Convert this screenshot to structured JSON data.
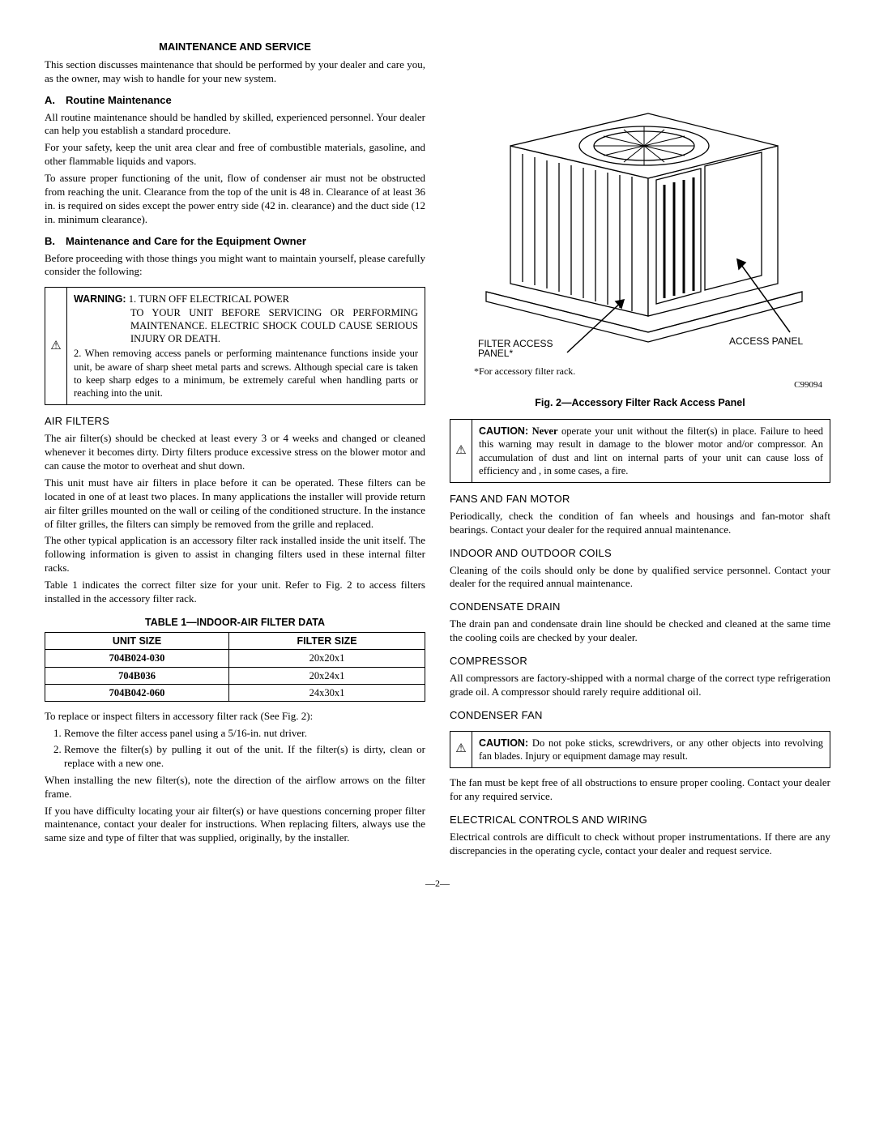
{
  "title": "MAINTENANCE AND SERVICE",
  "intro": "This section discusses maintenance that should be performed by your dealer and care you, as the owner, may wish to handle for your new system.",
  "secA": {
    "label": "A. Routine Maintenance",
    "p1": "All routine maintenance should be handled by skilled, experienced personnel. Your dealer can help you establish a standard procedure.",
    "p2": "For your safety, keep the unit area clear and free of combustible materials, gasoline, and other flammable liquids and vapors.",
    "p3": "To assure proper functioning of the unit, flow of condenser air must not be obstructed from reaching the unit. Clearance from the top of the unit is 48 in. Clearance of at least 36 in. is required on sides except the power entry side (42 in. clearance) and the duct side (12 in. minimum clearance)."
  },
  "secB": {
    "label": "B. Maintenance and Care for the Equipment Owner",
    "p1": "Before proceeding with those things you might want to maintain yourself, please carefully consider the following:"
  },
  "warning": {
    "lead": "WARNING:",
    "item1a": "1. TURN OFF ELECTRICAL POWER",
    "item1b": "TO YOUR UNIT BEFORE SERVICING OR PERFORMING MAINTENANCE. ELECTRIC SHOCK COULD CAUSE SERIOUS INJURY OR DEATH.",
    "item2": "2. When removing access panels or performing maintenance functions inside your unit, be aware of sharp sheet metal parts and screws. Although special care is taken to keep sharp edges to a minimum, be extremely careful when handling parts or reaching into the unit."
  },
  "airFilters": {
    "head": "AIR FILTERS",
    "p1": "The air filter(s) should be checked at least every 3 or 4 weeks and changed or cleaned whenever it becomes dirty. Dirty filters produce excessive stress on the blower motor and can cause the motor to overheat and shut down.",
    "p2": "This unit must have air filters in place before it can be operated. These filters can be located in one of at least two places. In many applications the installer will provide return air filter grilles mounted on the wall or ceiling of the conditioned structure. In the instance of filter grilles, the filters can simply be removed from the grille and replaced.",
    "p3": "The other typical application is an accessory filter rack installed inside the unit itself. The following information is given to assist in changing filters used in these internal filter racks.",
    "p4": "Table 1 indicates the correct filter size for your unit. Refer to Fig. 2 to access filters installed in the accessory filter rack."
  },
  "table1": {
    "title": "TABLE 1—INDOOR-AIR FILTER DATA",
    "headers": [
      "UNIT SIZE",
      "FILTER SIZE"
    ],
    "rows": [
      [
        "704B024-030",
        "20x20x1"
      ],
      [
        "704B036",
        "20x24x1"
      ],
      [
        "704B042-060",
        "24x30x1"
      ]
    ]
  },
  "replace": {
    "intro": "To replace or inspect filters in accessory filter rack (See Fig. 2):",
    "step1": "Remove the filter access panel using a 5/16-in. nut driver.",
    "step2": "Remove the filter(s) by pulling it out of the unit. If the filter(s) is dirty, clean or replace with a new one.",
    "p1": "When installing the new filter(s), note the direction of the airflow arrows on the filter frame.",
    "p2": "If you have difficulty locating your air filter(s) or have questions concerning proper filter maintenance, contact your dealer for instructions. When replacing filters, always use the same size and type of filter that was supplied, originally, by the installer."
  },
  "figure2": {
    "label_left": "FILTER ACCESS PANEL*",
    "label_right": "ACCESS PANEL",
    "note": "*For accessory filter rack.",
    "code": "C99094",
    "caption": "Fig. 2—Accessory Filter Rack Access Panel"
  },
  "caution1": {
    "lead": "CAUTION:",
    "text": "Never operate your unit without the filter(s) in place. Failure to heed this warning may result in damage to the blower motor and/or compressor. An accumulation of dust and lint on internal parts of your unit can cause loss of efficiency and , in some cases, a fire."
  },
  "fans": {
    "head": "FANS AND FAN MOTOR",
    "p1": "Periodically, check the condition of fan wheels and housings and fan-motor shaft bearings. Contact your dealer for the required annual maintenance."
  },
  "coils": {
    "head": "INDOOR AND OUTDOOR COILS",
    "p1": "Cleaning of the coils should only be done by qualified service personnel. Contact your dealer for the required annual maintenance."
  },
  "drain": {
    "head": "CONDENSATE DRAIN",
    "p1": "The drain pan and condensate drain line should be checked and cleaned at the same time the cooling coils are checked by your dealer."
  },
  "compressor": {
    "head": "COMPRESSOR",
    "p1": "All compressors are factory-shipped with a normal charge of the correct type refrigeration grade oil. A compressor should rarely require additional oil."
  },
  "condFan": {
    "head": "CONDENSER FAN"
  },
  "caution2": {
    "lead": "CAUTION:",
    "text": "Do not poke sticks, screwdrivers, or any other objects into revolving fan blades. Injury or equipment damage may result."
  },
  "condFan2": {
    "p1": "The fan must be kept free of all obstructions to ensure proper cooling. Contact your dealer for any required service."
  },
  "elec": {
    "head": "ELECTRICAL CONTROLS AND WIRING",
    "p1": "Electrical controls are difficult to check without proper instrumentations. If there are any discrepancies in the operating cycle, contact your dealer and request service."
  },
  "pagenum": "—2—",
  "never_word": "Never"
}
